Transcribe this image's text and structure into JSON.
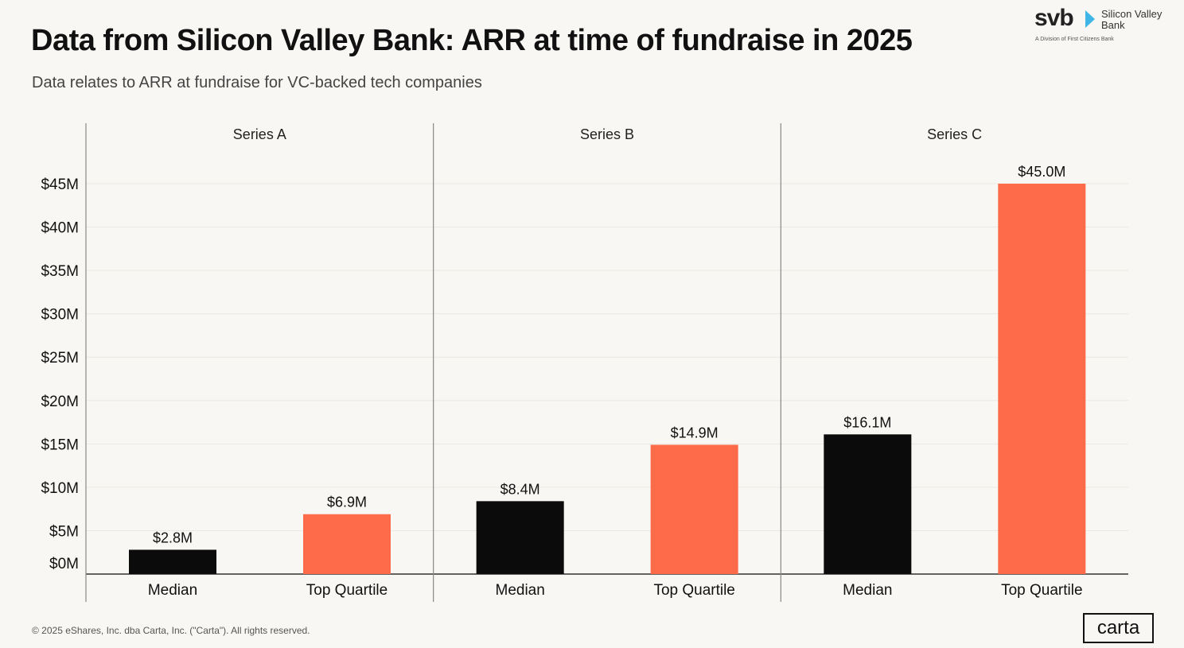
{
  "logo": {
    "brand": "svb",
    "name": "Silicon Valley Bank",
    "division": "A Division of First Citizens Bank"
  },
  "footer": {
    "copyright": "© 2025 eShares, Inc. dba Carta, Inc. (\"Carta\"). All rights reserved.",
    "carta_logo": "carta"
  },
  "colors": {
    "median": "#0b0b0b",
    "top_quartile": "#fd6b4b",
    "background": "#f9f7f3"
  },
  "chart_data": {
    "type": "bar",
    "title": "Data from Silicon Valley Bank: ARR at time of fundraise in 2025",
    "subtitle": "Data relates to ARR at fundraise for VC-backed tech companies",
    "panels": [
      "Series A",
      "Series B",
      "Series C"
    ],
    "categories": [
      "Median",
      "Top Quartile"
    ],
    "values": [
      [
        2.8,
        6.9
      ],
      [
        8.4,
        14.9
      ],
      [
        16.1,
        45.0
      ]
    ],
    "data_labels": [
      [
        "$2.8M",
        "$6.9M"
      ],
      [
        "$8.4M",
        "$14.9M"
      ],
      [
        "$16.1M",
        "$45.0M"
      ]
    ],
    "yticks": [
      0,
      5,
      10,
      15,
      20,
      25,
      30,
      35,
      40,
      45
    ],
    "ytick_labels": [
      "$0M",
      "$5M",
      "$10M",
      "$15M",
      "$20M",
      "$25M",
      "$30M",
      "$35M",
      "$40M",
      "$45M"
    ],
    "ylim": [
      0,
      45
    ],
    "grid": true,
    "xlabel": "",
    "ylabel": ""
  }
}
